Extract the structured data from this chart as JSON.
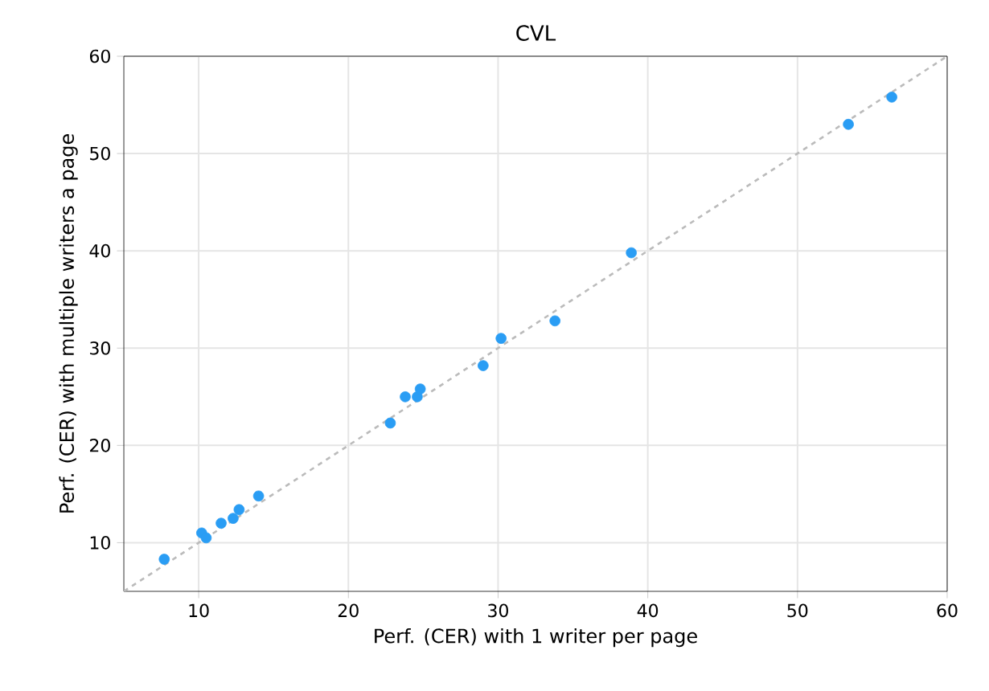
{
  "chart_data": {
    "type": "scatter",
    "title": "CVL",
    "xlabel": "Perf. (CER) with 1 writer per page",
    "ylabel": "Perf. (CER) with multiple writers a page",
    "xlim": [
      5,
      60
    ],
    "ylim": [
      5,
      60
    ],
    "xticks": [
      10,
      20,
      30,
      40,
      50,
      60
    ],
    "yticks": [
      10,
      20,
      30,
      40,
      50,
      60
    ],
    "grid": true,
    "marker": "circle",
    "series": [
      {
        "type": "line",
        "color": "#bbbbbb",
        "line_style": "dashed",
        "marker": "none",
        "x": [
          5,
          60
        ],
        "values": [
          5,
          60
        ]
      },
      {
        "color": "#2a9df4",
        "x": [
          7.7,
          10.2,
          10.5,
          11.5,
          12.3,
          12.7,
          14.0,
          22.8,
          23.8,
          24.6,
          24.8,
          29.0,
          30.2,
          33.8,
          38.9,
          53.4,
          56.3
        ],
        "values": [
          8.3,
          11.0,
          10.5,
          12.0,
          12.5,
          13.4,
          14.8,
          22.3,
          25.0,
          25.0,
          25.8,
          28.2,
          31.0,
          32.8,
          39.8,
          53.0,
          55.8
        ]
      }
    ]
  }
}
